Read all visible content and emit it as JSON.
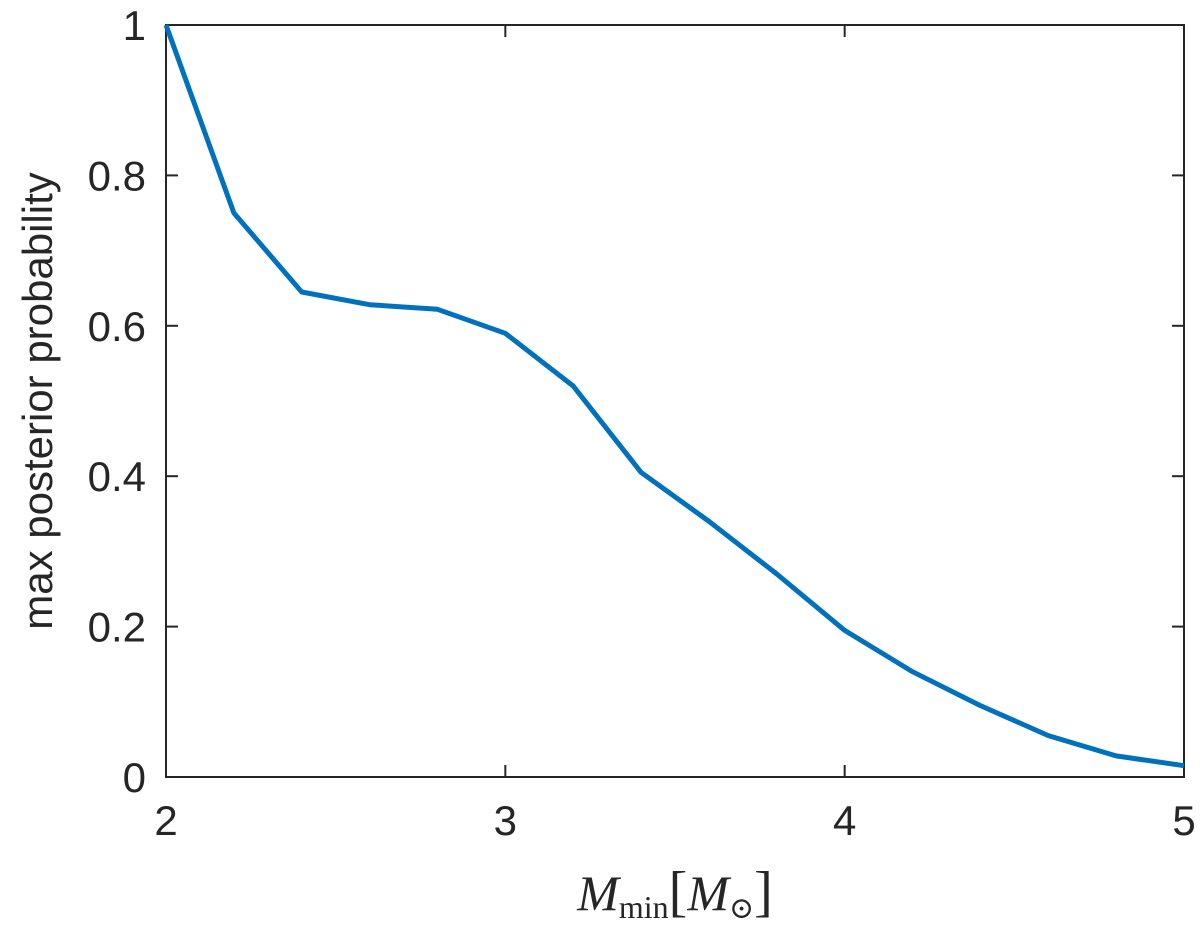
{
  "chart_data": {
    "type": "line",
    "title": "",
    "xlabel_parts": {
      "main": "M",
      "sub": "min",
      "bracket_open": "[",
      "unit": "M",
      "unit_sub": "⊙",
      "bracket_close": "]"
    },
    "ylabel": "max posterior probability",
    "xlim": [
      2,
      5
    ],
    "ylim": [
      0,
      1
    ],
    "xticks": [
      2,
      3,
      4,
      5
    ],
    "xtick_labels": [
      "2",
      "3",
      "4",
      "5"
    ],
    "yticks": [
      0,
      0.2,
      0.4,
      0.6,
      0.8,
      1
    ],
    "ytick_labels": [
      "0",
      "0.2",
      "0.4",
      "0.6",
      "0.8",
      "1"
    ],
    "grid": false,
    "series": [
      {
        "color": "#0072bd",
        "x": [
          2.0,
          2.2,
          2.4,
          2.6,
          2.8,
          3.0,
          3.2,
          3.4,
          3.6,
          3.8,
          4.0,
          4.2,
          4.4,
          4.6,
          4.8,
          5.0
        ],
        "y": [
          1.0,
          0.75,
          0.645,
          0.628,
          0.622,
          0.59,
          0.52,
          0.405,
          0.34,
          0.27,
          0.195,
          0.14,
          0.095,
          0.055,
          0.028,
          0.015
        ]
      }
    ]
  }
}
